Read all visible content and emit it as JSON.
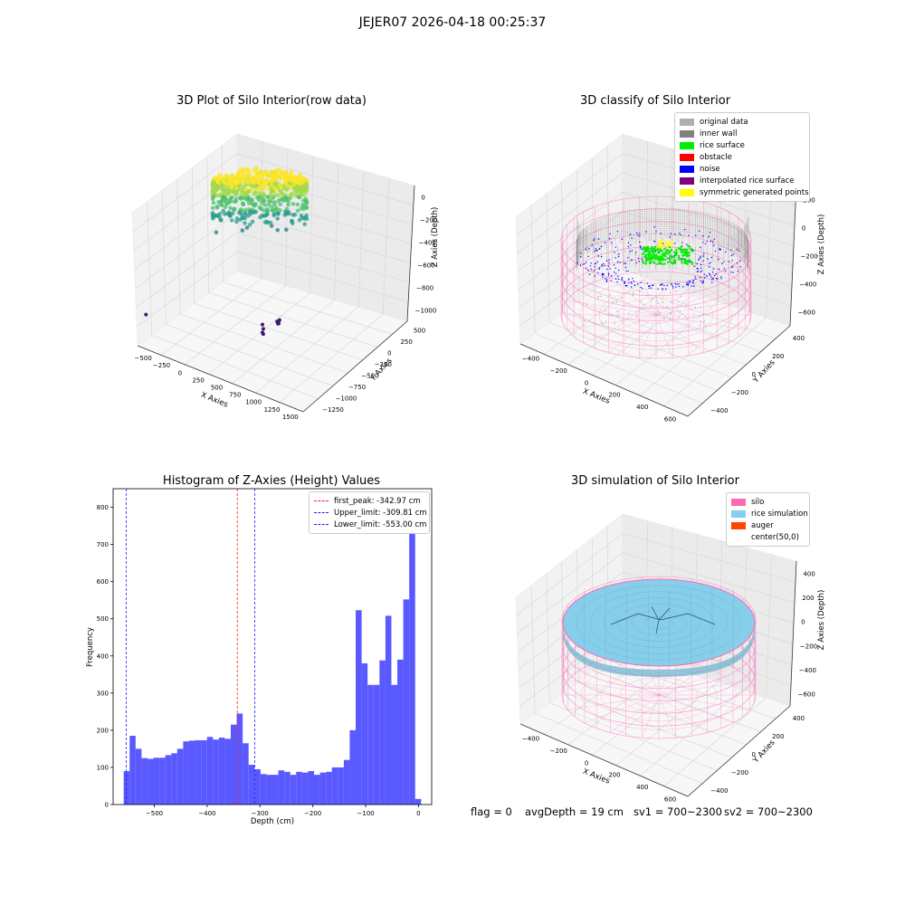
{
  "suptitle": "JEJER07 2026-04-18 00:25:37",
  "chart_data": [
    {
      "type": "scatter",
      "title": "3D Plot of Silo Interior(row data)",
      "xlabel": "X Axies",
      "ylabel": "Y Axies",
      "zlabel": "Z Axies (Depth)",
      "x_ticks": [
        "−500",
        "−250",
        "0",
        "250",
        "500",
        "750",
        "1000",
        "1250",
        "1500"
      ],
      "y_ticks": [
        "−1250",
        "−1000",
        "−750",
        "−500",
        "−250",
        "0",
        "250",
        "500"
      ],
      "z_ticks": [
        "0",
        "−200",
        "−400",
        "−600",
        "−800",
        "−1000"
      ],
      "xlim": [
        -500,
        1500
      ],
      "ylim": [
        -1250,
        500
      ],
      "zlim": [
        -1100,
        0
      ],
      "colormap": "viridis",
      "outliers": [
        {
          "x": -430,
          "y": -470,
          "z": -1000
        },
        {
          "x": 1000,
          "y": -1150,
          "z": -900
        },
        {
          "x": 1010,
          "y": -1180,
          "z": -990
        },
        {
          "x": 1000,
          "y": -1240,
          "z": -1050
        },
        {
          "x": 1010,
          "y": -1250,
          "z": -1080
        },
        {
          "x": 1180,
          "y": -760,
          "z": -1020
        },
        {
          "x": 1190,
          "y": -790,
          "z": -1060
        },
        {
          "x": 1200,
          "y": -820,
          "z": -1040
        },
        {
          "x": 1210,
          "y": -730,
          "z": -1000
        }
      ]
    },
    {
      "type": "scatter",
      "title": "3D classify of Silo Interior",
      "xlabel": "X Axies",
      "ylabel": "Y Axies",
      "zlabel": "Z Axies (Depth)",
      "x_ticks": [
        "−400",
        "−200",
        "0",
        "200",
        "400",
        "600"
      ],
      "y_ticks": [
        "−400",
        "−200",
        "0",
        "200",
        "400"
      ],
      "z_ticks": [
        "200",
        "0",
        "−200",
        "−400",
        "−600"
      ],
      "legend": [
        {
          "name": "original data",
          "color": "#b0b0b0"
        },
        {
          "name": "inner wall",
          "color": "#808080"
        },
        {
          "name": "rice surface",
          "color": "#00ee00"
        },
        {
          "name": "obstacle",
          "color": "#ff0000"
        },
        {
          "name": "noise",
          "color": "#0000ff"
        },
        {
          "name": "interpolated rice surface",
          "color": "#800080"
        },
        {
          "name": "symmetric generated points",
          "color": "#ffff00"
        }
      ],
      "silo_color": "#ff69b4"
    },
    {
      "type": "bar",
      "title": "Histogram of Z-Axies (Height) Values",
      "xlabel": "Depth (cm)",
      "ylabel": "Frequency",
      "xlim": [
        -578,
        25
      ],
      "ylim": [
        0,
        850
      ],
      "x_ticks": [
        -500,
        -400,
        -300,
        -200,
        -100,
        0
      ],
      "y_ticks": [
        0,
        100,
        200,
        300,
        400,
        500,
        600,
        700,
        800
      ],
      "bin_start": -558,
      "bin_width": 11.26,
      "values": [
        90,
        185,
        150,
        125,
        123,
        126,
        126,
        133,
        138,
        150,
        170,
        172,
        173,
        173,
        182,
        175,
        180,
        177,
        215,
        245,
        165,
        107,
        95,
        82,
        80,
        80,
        92,
        88,
        80,
        88,
        86,
        90,
        80,
        86,
        88,
        100,
        100,
        120,
        200,
        523,
        380,
        322,
        322,
        388,
        508,
        322,
        390,
        552,
        800,
        15
      ],
      "bar_color": "#5050ff",
      "vlines": [
        {
          "name": "first_peak: -342.97 cm",
          "x": -342.97,
          "color": "#ff2020"
        },
        {
          "name": "Upper_limit: -309.81 cm",
          "x": -309.81,
          "color": "#2020ff"
        },
        {
          "name": "Lower_limit: -553.00 cm",
          "x": -553.0,
          "color": "#2020ff"
        }
      ]
    },
    {
      "type": "scatter",
      "title": "3D simulation of Silo Interior",
      "xlabel": "X Axies",
      "ylabel": "Y Axies",
      "zlabel": "Z Axies (Depth)",
      "x_ticks": [
        "−400",
        "−200",
        "0",
        "200",
        "400",
        "600"
      ],
      "y_ticks": [
        "−400",
        "−200",
        "0",
        "200",
        "400"
      ],
      "z_ticks": [
        "400",
        "200",
        "0",
        "−200",
        "−400",
        "−600"
      ],
      "legend": [
        {
          "name": "silo",
          "color": "#ff69b4"
        },
        {
          "name": "rice simulation",
          "color": "#87ceeb"
        },
        {
          "name": "auger",
          "color": "#ff4500"
        },
        {
          "name": "center(50,0)",
          "color": "#ffffff"
        }
      ]
    }
  ],
  "status": {
    "flag": "flag = 0",
    "avg_depth": "avgDepth = 19 cm",
    "sv1": "sv1 = 700~2300",
    "sv2": "sv2 = 700~2300"
  }
}
